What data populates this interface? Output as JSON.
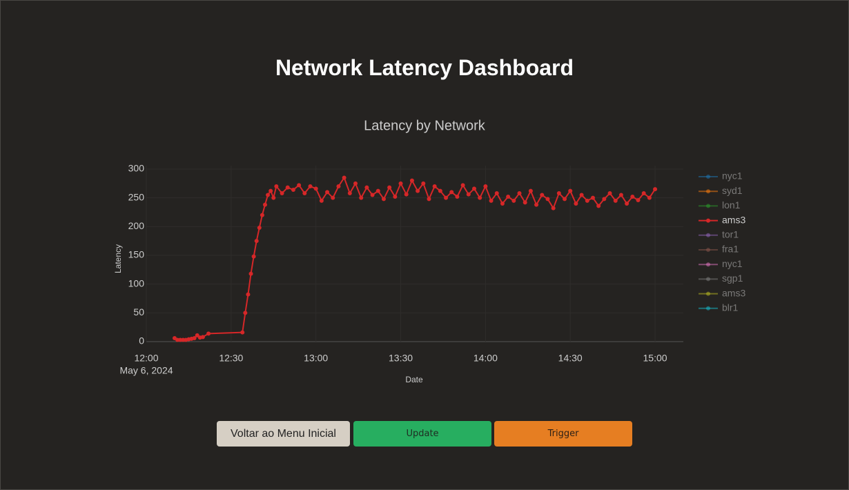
{
  "header": {
    "title": "Network Latency Dashboard"
  },
  "chart_data": {
    "type": "line",
    "title": "Latency by Network",
    "x_label": "Date",
    "y_label": "Latency",
    "xlim": [
      "2024-05-06T12:00",
      "2024-05-06T15:10"
    ],
    "xticks": [
      {
        "value": "2024-05-06T12:00",
        "label": "12:00",
        "sublabel": "May 6, 2024"
      },
      {
        "value": "2024-05-06T12:30",
        "label": "12:30"
      },
      {
        "value": "2024-05-06T13:00",
        "label": "13:00"
      },
      {
        "value": "2024-05-06T13:30",
        "label": "13:30"
      },
      {
        "value": "2024-05-06T14:00",
        "label": "14:00"
      },
      {
        "value": "2024-05-06T14:30",
        "label": "14:30"
      },
      {
        "value": "2024-05-06T15:00",
        "label": "15:00"
      }
    ],
    "ylim": [
      0,
      300
    ],
    "yticks": [
      0,
      50,
      100,
      150,
      200,
      250,
      300
    ],
    "grid": true,
    "legend": "right",
    "series": [
      {
        "name": "nyc1",
        "color": "#1f77b4",
        "visible": "legendonly"
      },
      {
        "name": "syd1",
        "color": "#ff7f0e",
        "visible": "legendonly"
      },
      {
        "name": "lon1",
        "color": "#2ca02c",
        "visible": "legendonly"
      },
      {
        "name": "ams3",
        "color": "#d62728",
        "visible": true,
        "x": [
          "2024-05-06T12:10",
          "2024-05-06T12:11",
          "2024-05-06T12:12",
          "2024-05-06T12:13",
          "2024-05-06T12:14",
          "2024-05-06T12:15",
          "2024-05-06T12:16",
          "2024-05-06T12:17",
          "2024-05-06T12:18",
          "2024-05-06T12:19",
          "2024-05-06T12:20",
          "2024-05-06T12:22",
          "2024-05-06T12:34",
          "2024-05-06T12:35",
          "2024-05-06T12:36",
          "2024-05-06T12:37",
          "2024-05-06T12:38",
          "2024-05-06T12:39",
          "2024-05-06T12:40",
          "2024-05-06T12:41",
          "2024-05-06T12:42",
          "2024-05-06T12:43",
          "2024-05-06T12:44",
          "2024-05-06T12:45",
          "2024-05-06T12:46",
          "2024-05-06T12:48",
          "2024-05-06T12:50",
          "2024-05-06T12:52",
          "2024-05-06T12:54",
          "2024-05-06T12:56",
          "2024-05-06T12:58",
          "2024-05-06T13:00",
          "2024-05-06T13:02",
          "2024-05-06T13:04",
          "2024-05-06T13:06",
          "2024-05-06T13:08",
          "2024-05-06T13:10",
          "2024-05-06T13:12",
          "2024-05-06T13:14",
          "2024-05-06T13:16",
          "2024-05-06T13:18",
          "2024-05-06T13:20",
          "2024-05-06T13:22",
          "2024-05-06T13:24",
          "2024-05-06T13:26",
          "2024-05-06T13:28",
          "2024-05-06T13:30",
          "2024-05-06T13:32",
          "2024-05-06T13:34",
          "2024-05-06T13:36",
          "2024-05-06T13:38",
          "2024-05-06T13:40",
          "2024-05-06T13:42",
          "2024-05-06T13:44",
          "2024-05-06T13:46",
          "2024-05-06T13:48",
          "2024-05-06T13:50",
          "2024-05-06T13:52",
          "2024-05-06T13:54",
          "2024-05-06T13:56",
          "2024-05-06T13:58",
          "2024-05-06T14:00",
          "2024-05-06T14:02",
          "2024-05-06T14:04",
          "2024-05-06T14:06",
          "2024-05-06T14:08",
          "2024-05-06T14:10",
          "2024-05-06T14:12",
          "2024-05-06T14:14",
          "2024-05-06T14:16",
          "2024-05-06T14:18",
          "2024-05-06T14:20",
          "2024-05-06T14:22",
          "2024-05-06T14:24",
          "2024-05-06T14:26",
          "2024-05-06T14:28",
          "2024-05-06T14:30",
          "2024-05-06T14:32",
          "2024-05-06T14:34",
          "2024-05-06T14:36",
          "2024-05-06T14:38",
          "2024-05-06T14:40",
          "2024-05-06T14:42",
          "2024-05-06T14:44",
          "2024-05-06T14:46",
          "2024-05-06T14:48",
          "2024-05-06T14:50",
          "2024-05-06T14:52",
          "2024-05-06T14:54",
          "2024-05-06T14:56",
          "2024-05-06T14:58",
          "2024-05-06T15:00"
        ],
        "values": [
          6,
          3,
          3,
          3,
          3,
          4,
          5,
          6,
          11,
          7,
          8,
          14,
          16,
          50,
          82,
          118,
          148,
          175,
          198,
          220,
          238,
          255,
          262,
          250,
          270,
          258,
          268,
          264,
          272,
          258,
          270,
          266,
          245,
          260,
          250,
          270,
          285,
          258,
          275,
          250,
          268,
          255,
          262,
          248,
          268,
          252,
          275,
          256,
          280,
          262,
          275,
          248,
          270,
          262,
          250,
          260,
          252,
          272,
          256,
          266,
          250,
          270,
          245,
          258,
          240,
          252,
          245,
          258,
          242,
          262,
          238,
          255,
          248,
          232,
          258,
          248,
          262,
          240,
          255,
          245,
          250,
          236,
          248,
          258,
          245,
          255,
          240,
          252,
          246,
          258,
          250,
          265
        ]
      },
      {
        "name": "tor1",
        "color": "#9467bd",
        "visible": "legendonly"
      },
      {
        "name": "fra1",
        "color": "#8c564b",
        "visible": "legendonly"
      },
      {
        "name": "nyc1",
        "color": "#e377c2",
        "visible": "legendonly"
      },
      {
        "name": "sgp1",
        "color": "#7f7f7f",
        "visible": "legendonly"
      },
      {
        "name": "ams3",
        "color": "#bcbd22",
        "visible": "legendonly"
      },
      {
        "name": "blr1",
        "color": "#17becf",
        "visible": "legendonly"
      }
    ]
  },
  "buttons": [
    "Voltar ao Menu Inicial",
    "Update",
    "Trigger"
  ]
}
